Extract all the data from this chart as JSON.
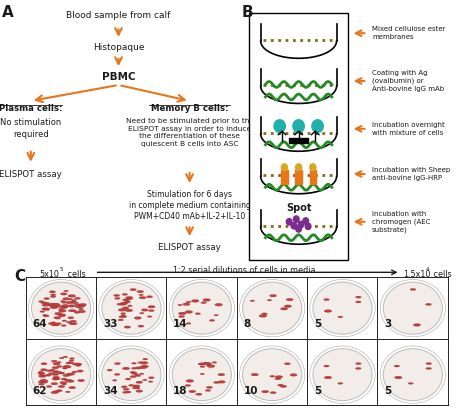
{
  "panel_A": {
    "title": "A",
    "blood": "Blood sample from calf",
    "histo": "Histopaque",
    "pbmc": "PBMC",
    "plasma_title": "Plasma cells:",
    "plasma_body": "No stimulation\nrequired",
    "plasma_elispot": "ELISPOT assay",
    "memory_title": "Memory B cells:",
    "memory_body": "Need to be stimulated prior to the\nELISPOT assay in order to induce\nthe differentiation of these\nquiescent B cells into ASC",
    "stim_text": "Stimulation for 6 days\nin complete medium containing\nPWM+CD40 mAb+IL-2+IL-10",
    "memory_elispot": "ELISPOT assay"
  },
  "panel_B": {
    "title": "B",
    "labels": [
      "Mixed cellulose ester\nmembranes",
      "Coating with Ag\n(ovalbumin) or\nAnti-bovine IgG mAb",
      "Incubation overnight\nwith mixture of cells",
      "Incubation with Sheep\nanti-bovine IgG-HRP",
      "Incubation with\nchromogen (AEC\nsubstrate)"
    ]
  },
  "panel_C": {
    "title": "C",
    "row1": [
      64,
      33,
      14,
      8,
      5,
      3
    ],
    "row2": [
      62,
      34,
      18,
      10,
      5,
      5
    ],
    "header_left": "5x10",
    "header_left_sup": "5",
    "header_left_suffix": " cells",
    "header_right": "1.5x10",
    "header_right_sup": "4",
    "header_right_suffix": " cells",
    "header_middle": "1:2 serial dilutions of cells in media"
  },
  "colors": {
    "orange": "#E8751A",
    "text_black": "#1a1a1a",
    "background": "#ffffff",
    "spot_red": "#c04040",
    "spot_dark": "#8B2020",
    "green": "#228B22",
    "teal": "#20B2AA",
    "purple": "#7B2D8B",
    "gold": "#DAA520",
    "dot_brown": "#8B6914"
  }
}
